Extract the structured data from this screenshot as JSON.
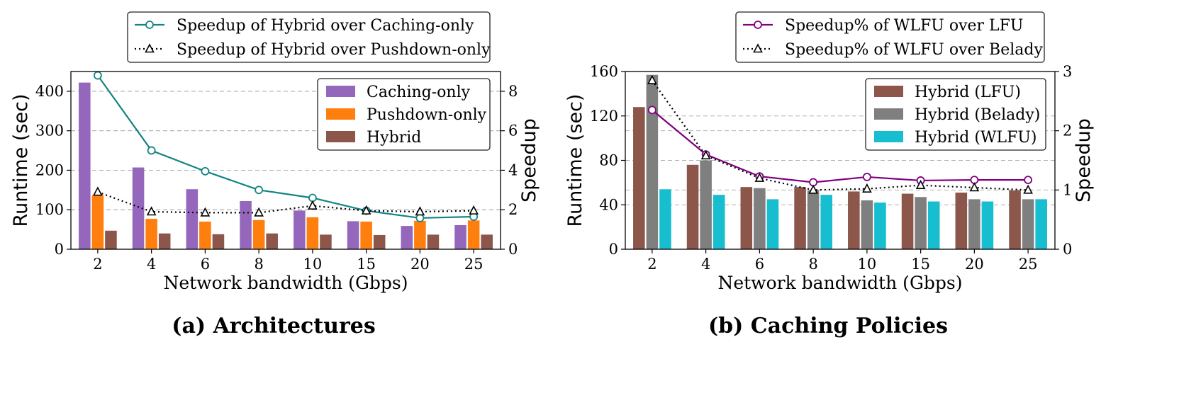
{
  "chart_data": [
    {
      "type": "bar",
      "caption": "(a) Architectures",
      "xlabel": "Network bandwidth (Gbps)",
      "ylabel": "Runtime (sec)",
      "y2label": "Speedup",
      "categories": [
        "2",
        "4",
        "6",
        "8",
        "10",
        "15",
        "20",
        "25"
      ],
      "ylim": [
        0,
        450
      ],
      "yticks": [
        0,
        100,
        200,
        300,
        400
      ],
      "y2lim": [
        0,
        9
      ],
      "y2ticks": [
        0,
        2,
        4,
        6,
        8
      ],
      "grid": "horizontal dashed",
      "bar_legend_placement": "upper-right inside",
      "line_legend_placement": "above plot",
      "series": [
        {
          "name": "Caching-only",
          "color": "#9467bd",
          "values": [
            422,
            207,
            152,
            122,
            98,
            71,
            59,
            61
          ]
        },
        {
          "name": "Pushdown-only",
          "color": "#ff7f0e",
          "values": [
            137,
            77,
            70,
            74,
            81,
            70,
            72,
            73
          ]
        },
        {
          "name": "Hybrid",
          "color": "#8c564b",
          "values": [
            47,
            40,
            38,
            40,
            37,
            36,
            37,
            37
          ]
        }
      ],
      "lines": [
        {
          "name": "Speedup of Hybrid over Caching-only",
          "color": "#138483",
          "style": "solid",
          "marker": "circle",
          "values": [
            8.8,
            5.0,
            3.95,
            3.0,
            2.6,
            1.95,
            1.58,
            1.65
          ]
        },
        {
          "name": "Speedup of Hybrid over Pushdown-only",
          "color": "#000000",
          "style": "dotted",
          "marker": "triangle",
          "values": [
            2.9,
            1.9,
            1.85,
            1.85,
            2.2,
            1.95,
            1.9,
            1.95
          ]
        }
      ]
    },
    {
      "type": "bar",
      "caption": "(b) Caching Policies",
      "xlabel": "Network bandwidth (Gbps)",
      "ylabel": "Runtime (sec)",
      "y2label": "Speedup",
      "categories": [
        "2",
        "4",
        "6",
        "8",
        "10",
        "15",
        "20",
        "25"
      ],
      "ylim": [
        0,
        160
      ],
      "yticks": [
        0,
        40,
        80,
        120,
        160
      ],
      "y2lim": [
        0,
        3
      ],
      "y2ticks": [
        0,
        1,
        2,
        3
      ],
      "grid": "horizontal dashed",
      "bar_legend_placement": "upper-right inside",
      "line_legend_placement": "above plot",
      "series": [
        {
          "name": "Hybrid (LFU)",
          "color": "#8c564b",
          "values": [
            128,
            76,
            56,
            56,
            52,
            50,
            51,
            53
          ]
        },
        {
          "name": "Hybrid (Belady)",
          "color": "#7f7f7f",
          "values": [
            157,
            80,
            55,
            53,
            44,
            47,
            45,
            45
          ]
        },
        {
          "name": "Hybrid (WLFU)",
          "color": "#17becf",
          "values": [
            54,
            49,
            45,
            49,
            42,
            43,
            43,
            45
          ]
        }
      ],
      "lines": [
        {
          "name": "Speedup% of WLFU over LFU",
          "color": "#800080",
          "style": "solid",
          "marker": "circle",
          "values": [
            2.35,
            1.6,
            1.23,
            1.13,
            1.22,
            1.16,
            1.17,
            1.17
          ]
        },
        {
          "name": "Speedup% of WLFU over Belady",
          "color": "#000000",
          "style": "dotted",
          "marker": "triangle",
          "values": [
            2.85,
            1.58,
            1.2,
            1.0,
            1.02,
            1.08,
            1.04,
            1.0
          ]
        }
      ]
    }
  ]
}
